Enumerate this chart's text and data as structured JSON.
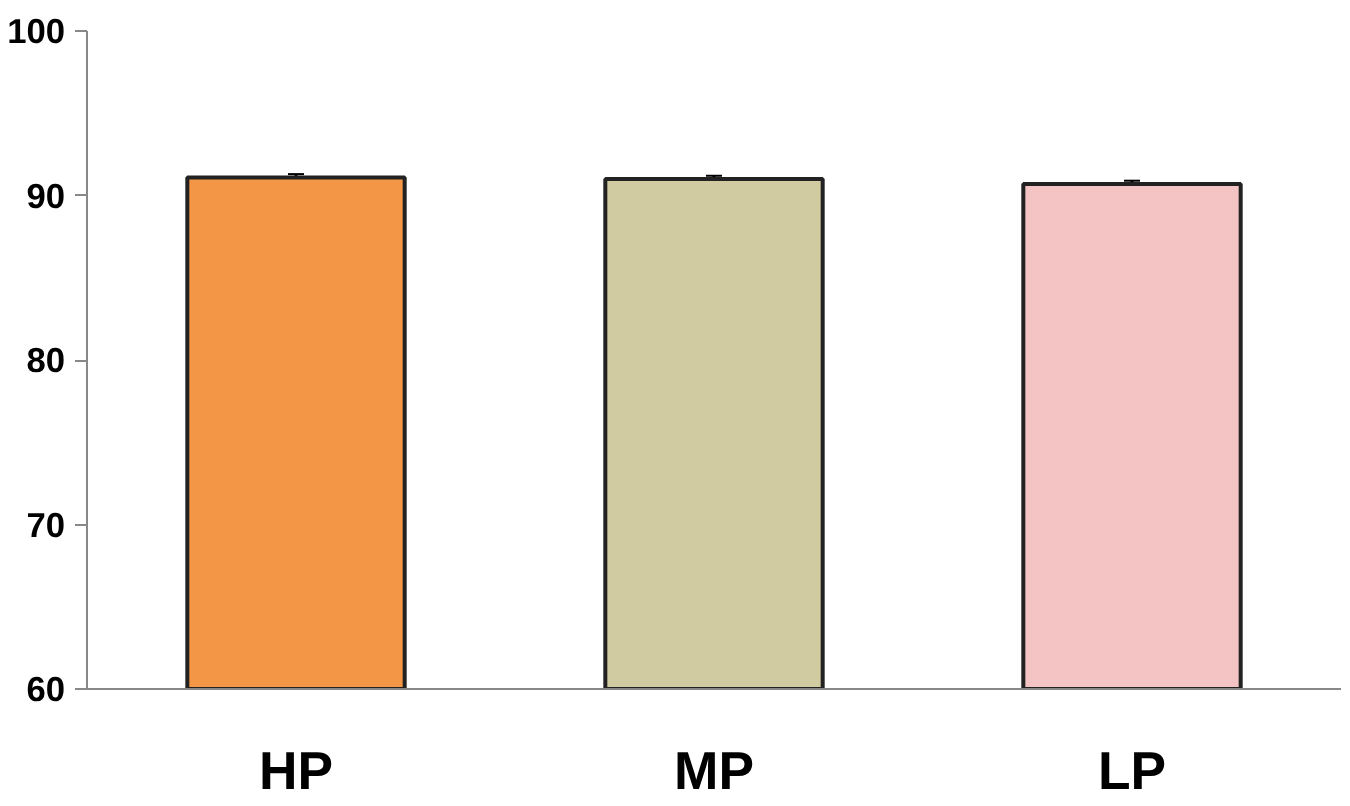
{
  "chart_data": {
    "type": "bar",
    "categories": [
      "HP",
      "MP",
      "LP"
    ],
    "values": [
      91.1,
      91.0,
      90.7
    ],
    "errors": [
      0.2,
      0.2,
      0.2
    ],
    "colors": [
      "#f39646",
      "#d1cba2",
      "#f4c3c3"
    ],
    "ylim": [
      60,
      100
    ],
    "yticks": [
      60,
      70,
      80,
      90,
      100
    ],
    "grid": false
  }
}
